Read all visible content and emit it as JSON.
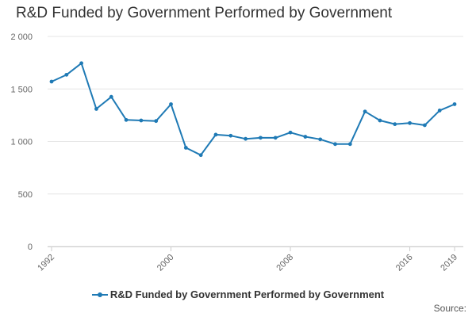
{
  "chart_data": {
    "type": "line",
    "title": "R&D Funded by Government Performed by Government",
    "x": [
      1992,
      1993,
      1994,
      1995,
      1996,
      1997,
      1998,
      1999,
      2000,
      2001,
      2002,
      2003,
      2004,
      2005,
      2006,
      2007,
      2008,
      2009,
      2010,
      2011,
      2012,
      2013,
      2014,
      2015,
      2016,
      2017,
      2018,
      2019
    ],
    "x_tick_labels": [
      "1992",
      "2000",
      "2008",
      "2016",
      "2019"
    ],
    "y_tick_labels": [
      "0",
      "500",
      "1 000",
      "1 500",
      "2 000"
    ],
    "ylim": [
      0,
      2000
    ],
    "grid": "horizontal",
    "legend": "bottom-center",
    "series": [
      {
        "name": "R&D Funded by Government Performed by Government",
        "color": "#1f7ab5",
        "values": [
          1570,
          1635,
          1745,
          1310,
          1425,
          1205,
          1200,
          1195,
          1355,
          940,
          870,
          1065,
          1055,
          1025,
          1035,
          1035,
          1085,
          1045,
          1020,
          975,
          975,
          1285,
          1200,
          1165,
          1175,
          1155,
          1295,
          1355
        ]
      }
    ]
  },
  "footer": {
    "source": "Source:"
  }
}
